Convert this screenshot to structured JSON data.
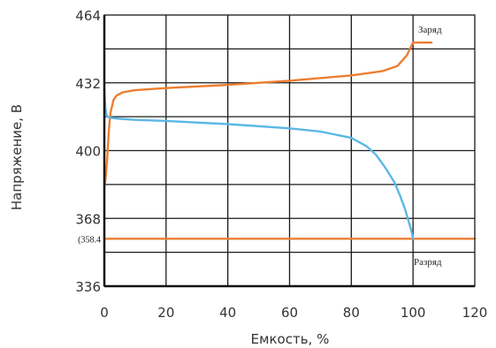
{
  "chart_data": {
    "type": "line",
    "xlabel": "Емкость, %",
    "ylabel": "Напряжение, В",
    "xlim": [
      0,
      120
    ],
    "ylim": [
      336,
      464
    ],
    "x_ticks": [
      "0",
      "20",
      "40",
      "60",
      "80",
      "100",
      "120"
    ],
    "x_tick_values": [
      0,
      20,
      40,
      60,
      80,
      100,
      120
    ],
    "y_ticks": [
      {
        "value": 336,
        "label": "336"
      },
      {
        "value": 358.4,
        "label": "(358.4"
      },
      {
        "value": 368,
        "label": "368"
      },
      {
        "value": 400,
        "label": "400"
      },
      {
        "value": 432,
        "label": "432"
      },
      {
        "value": 464,
        "label": "464"
      }
    ],
    "grid": true,
    "series": [
      {
        "name": "Заряд",
        "color": "#ED7D31",
        "x": [
          0,
          0.5,
          1,
          1.5,
          2,
          3,
          4,
          6,
          10,
          20,
          40,
          60,
          80,
          90,
          95,
          98,
          100,
          106
        ],
        "y": [
          382,
          388,
          398,
          410,
          418,
          424,
          426,
          427.5,
          428.5,
          429.5,
          431,
          433,
          435.5,
          437.5,
          440,
          445,
          451,
          451
        ]
      },
      {
        "name": "Разряд",
        "color": "#ED7D31",
        "x": [
          0,
          120
        ],
        "y": [
          358.4,
          358.4
        ]
      },
      {
        "name": "",
        "color": "#5BB8E6",
        "x": [
          0,
          0.3,
          0.6,
          1,
          2,
          5,
          10,
          20,
          40,
          60,
          70,
          80,
          85,
          88,
          91,
          94,
          96,
          97.5,
          98.5,
          99.5,
          100
        ],
        "y": [
          429,
          421,
          417.5,
          416,
          415.5,
          415,
          414.5,
          414,
          412.5,
          410.5,
          409,
          406,
          402,
          398,
          392,
          385,
          378,
          372,
          367,
          362,
          358.4
        ]
      }
    ]
  }
}
